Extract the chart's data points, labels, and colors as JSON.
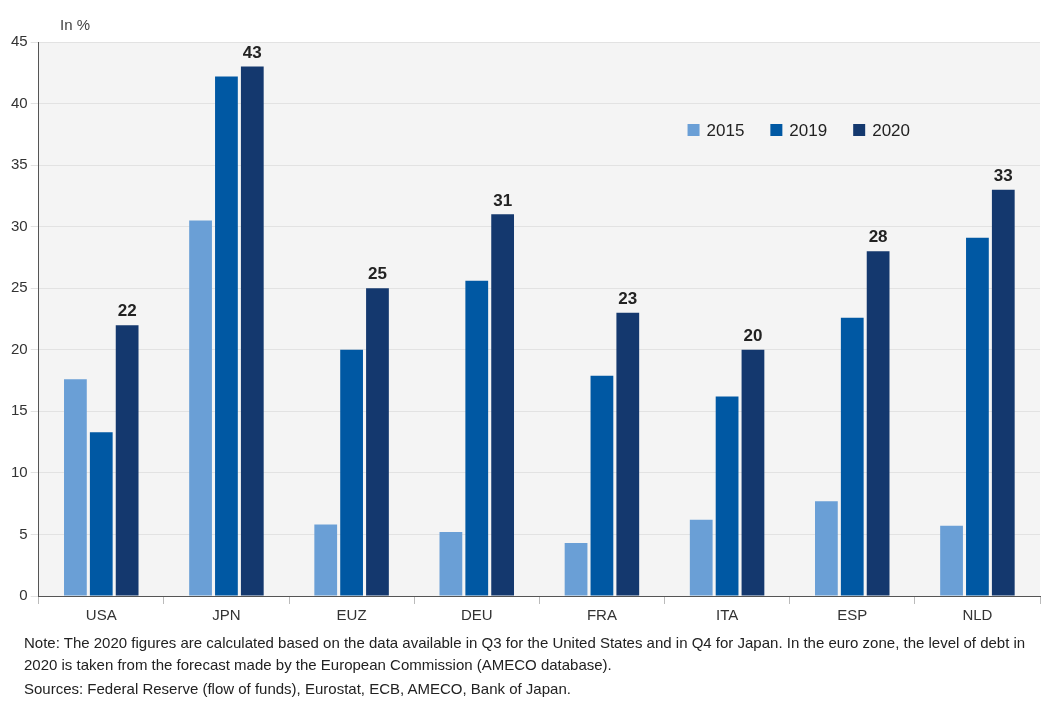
{
  "chart_data": {
    "type": "bar",
    "ylabel": "In %",
    "categories": [
      "USA",
      "JPN",
      "EUZ",
      "DEU",
      "FRA",
      "ITA",
      "ESP",
      "NLD"
    ],
    "series": [
      {
        "name": "2015",
        "color": "#6a9fd6",
        "values": [
          17.6,
          30.5,
          5.8,
          5.2,
          4.3,
          6.2,
          7.7,
          5.7
        ]
      },
      {
        "name": "2019",
        "color": "#0058a3",
        "values": [
          13.3,
          42.2,
          20.0,
          25.6,
          17.9,
          16.2,
          22.6,
          29.1
        ]
      },
      {
        "name": "2020",
        "color": "#14386e",
        "values": [
          22,
          43,
          25,
          31,
          23,
          20,
          28,
          33
        ],
        "value_labels": [
          "22",
          "43",
          "25",
          "31",
          "23",
          "20",
          "28",
          "33"
        ]
      }
    ],
    "ylim": [
      0,
      45
    ],
    "yticks": [
      0,
      5,
      10,
      15,
      20,
      25,
      30,
      35,
      40,
      45
    ],
    "grid": "y",
    "legend": "top right",
    "annotations": [
      "Note: The 2020 figures are calculated based on the data available in Q3 for the United States and in Q4 for Japan. In the euro zone, the level of debt in 2020 is taken from the forecast made by the European Commission (AMECO database).",
      "Sources: Federal Reserve (flow of funds), Eurostat, ECB, AMECO, Bank of Japan."
    ]
  }
}
